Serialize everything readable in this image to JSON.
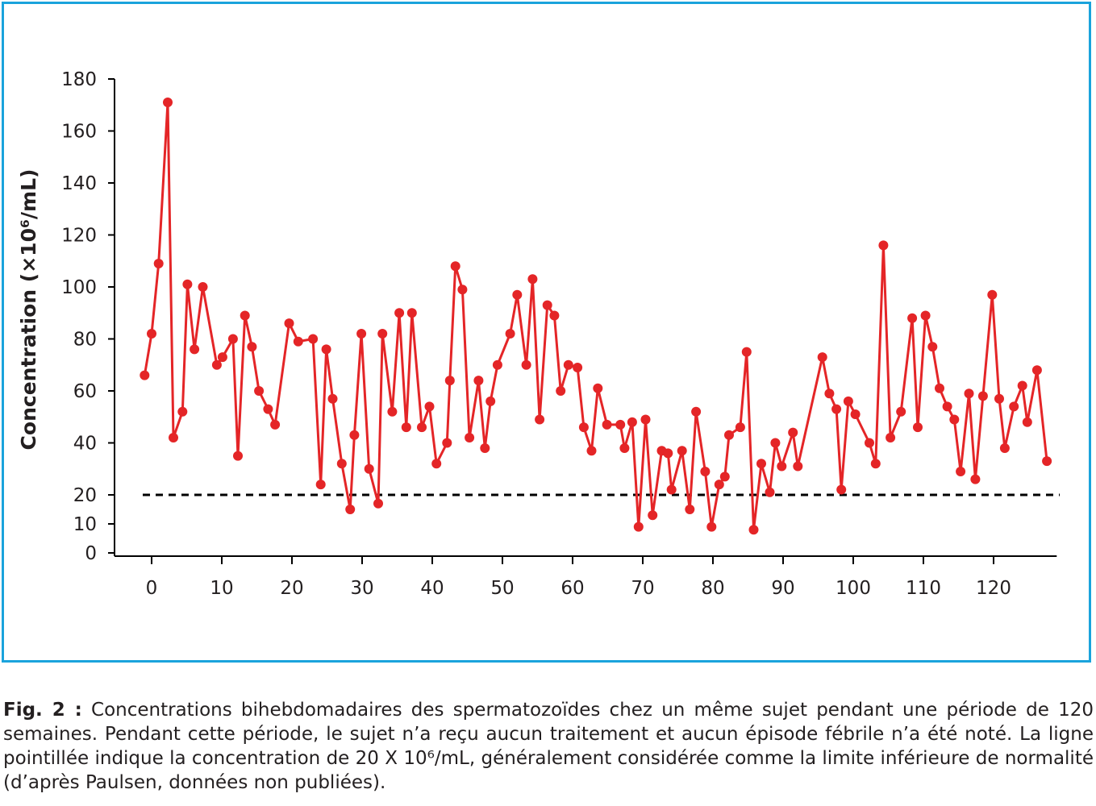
{
  "chart_data": {
    "type": "line",
    "ylabel": "Concentration (×10⁶/mL)",
    "xlabel": "",
    "title": "",
    "xlim": [
      -1.2,
      129
    ],
    "ylim": [
      0,
      180
    ],
    "x_ticks": [
      0,
      10,
      20,
      30,
      40,
      50,
      60,
      70,
      80,
      90,
      100,
      110,
      120
    ],
    "y_ticks": [
      0,
      10,
      20,
      40,
      60,
      80,
      100,
      120,
      140,
      160,
      180
    ],
    "grid": false,
    "reference_line": {
      "y": 20,
      "style": "dashed",
      "color": "#000000"
    },
    "series": [
      {
        "color": "#e42527",
        "points": [
          [
            -1,
            66
          ],
          [
            0,
            82
          ],
          [
            1,
            109
          ],
          [
            2.3,
            171
          ],
          [
            3.1,
            42
          ],
          [
            4.4,
            52
          ],
          [
            5.1,
            101
          ],
          [
            6.1,
            76
          ],
          [
            7.3,
            100
          ],
          [
            9.3,
            70
          ],
          [
            10.1,
            73
          ],
          [
            11.6,
            80
          ],
          [
            12.3,
            35
          ],
          [
            13.3,
            89
          ],
          [
            14.3,
            77
          ],
          [
            15.3,
            60
          ],
          [
            16.6,
            53
          ],
          [
            17.6,
            47
          ],
          [
            19.6,
            86
          ],
          [
            20.9,
            79
          ],
          [
            23,
            80
          ],
          [
            24.1,
            24
          ],
          [
            24.9,
            76
          ],
          [
            25.8,
            57
          ],
          [
            27.1,
            32
          ],
          [
            28.3,
            15
          ],
          [
            28.9,
            43
          ],
          [
            29.9,
            82
          ],
          [
            31,
            30
          ],
          [
            32.3,
            17
          ],
          [
            32.9,
            82
          ],
          [
            34.3,
            52
          ],
          [
            35.3,
            90
          ],
          [
            36.3,
            46
          ],
          [
            37.1,
            90
          ],
          [
            38.5,
            46
          ],
          [
            39.6,
            54
          ],
          [
            40.6,
            32
          ],
          [
            42.1,
            40
          ],
          [
            42.5,
            64
          ],
          [
            43.3,
            108
          ],
          [
            44.3,
            99
          ],
          [
            45.3,
            42
          ],
          [
            46.6,
            64
          ],
          [
            47.5,
            38
          ],
          [
            48.3,
            56
          ],
          [
            49.3,
            70
          ],
          [
            51.1,
            82
          ],
          [
            52.1,
            97
          ],
          [
            53.4,
            70
          ],
          [
            54.3,
            103
          ],
          [
            55.3,
            49
          ],
          [
            56.4,
            93
          ],
          [
            57.4,
            89
          ],
          [
            58.3,
            60
          ],
          [
            59.4,
            70
          ],
          [
            60.7,
            69
          ],
          [
            61.6,
            46
          ],
          [
            62.7,
            37
          ],
          [
            63.6,
            61
          ],
          [
            64.9,
            47
          ],
          [
            66.8,
            47
          ],
          [
            67.4,
            38
          ],
          [
            68.5,
            48
          ],
          [
            69.4,
            9
          ],
          [
            70.4,
            49
          ],
          [
            71.4,
            13
          ],
          [
            72.7,
            37
          ],
          [
            73.6,
            36
          ],
          [
            74.1,
            22
          ],
          [
            75.6,
            37
          ],
          [
            76.7,
            15
          ],
          [
            77.6,
            52
          ],
          [
            78.9,
            29
          ],
          [
            79.8,
            9
          ],
          [
            80.9,
            24
          ],
          [
            81.7,
            27
          ],
          [
            82.3,
            43
          ],
          [
            83.9,
            46
          ],
          [
            84.8,
            75
          ],
          [
            85.8,
            8
          ],
          [
            86.9,
            32
          ],
          [
            88.1,
            21
          ],
          [
            88.9,
            40
          ],
          [
            89.8,
            31
          ],
          [
            91.4,
            44
          ],
          [
            92.1,
            31
          ],
          [
            95.6,
            73
          ],
          [
            96.6,
            59
          ],
          [
            97.6,
            53
          ],
          [
            98.3,
            22
          ],
          [
            99.3,
            56
          ],
          [
            100.3,
            51
          ],
          [
            102.3,
            40
          ],
          [
            103.2,
            32
          ],
          [
            104.3,
            116
          ],
          [
            105.3,
            42
          ],
          [
            106.8,
            52
          ],
          [
            108.4,
            88
          ],
          [
            109.2,
            46
          ],
          [
            110.3,
            89
          ],
          [
            111.3,
            77
          ],
          [
            112.3,
            61
          ],
          [
            113.4,
            54
          ],
          [
            114.4,
            49
          ],
          [
            115.3,
            29
          ],
          [
            116.5,
            59
          ],
          [
            117.4,
            26
          ],
          [
            118.5,
            58
          ],
          [
            119.8,
            97
          ],
          [
            120.8,
            57
          ],
          [
            121.6,
            38
          ],
          [
            122.9,
            54
          ],
          [
            124.1,
            62
          ],
          [
            124.8,
            48
          ],
          [
            126.2,
            68
          ],
          [
            127.6,
            33
          ]
        ]
      }
    ]
  },
  "caption": {
    "label": "Fig. 2 :",
    "text": " Concentrations bihebdomadaires des spermatozoïdes chez un même sujet pendant une période de 120 semaines. Pendant cette période, le sujet n’a reçu aucun traitement et aucun épisode fébrile n’a été noté. La ligne pointillée indique la concentration de 20 X 10⁶/mL, généralement considérée comme la limite inférieure de normalité (d’après Paulsen, données non publiées)."
  }
}
